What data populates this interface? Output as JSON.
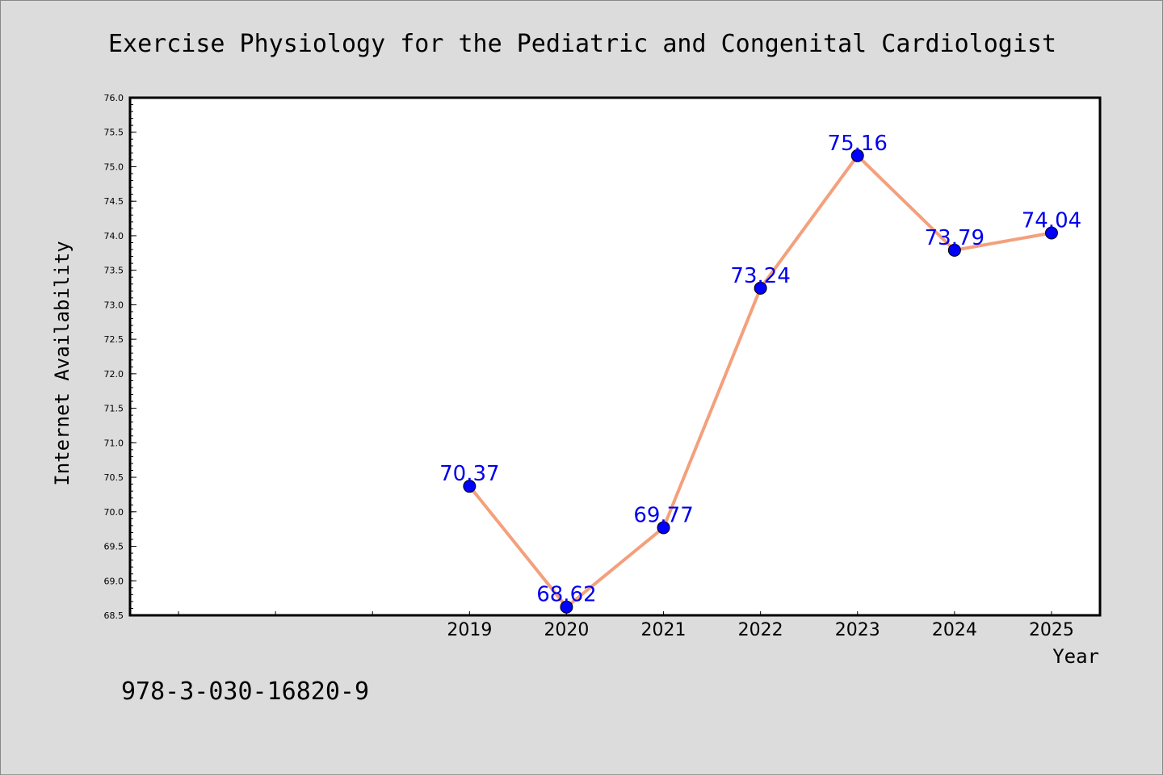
{
  "chart_data": {
    "type": "line",
    "title": "Exercise Physiology for the Pediatric and Congenital Cardiologist",
    "xlabel": "Year",
    "ylabel": "Internet Availability",
    "x": [
      2019,
      2020,
      2021,
      2022,
      2023,
      2024,
      2025
    ],
    "values": [
      70.37,
      68.62,
      69.77,
      73.24,
      75.16,
      73.79,
      74.04
    ],
    "data_labels": [
      "70.37",
      "68.62",
      "69.77",
      "73.24",
      "75.16",
      "73.79",
      "74.04"
    ],
    "x_tick_labels": [
      "2019",
      "2020",
      "2021",
      "2022",
      "2023",
      "2024",
      "2025"
    ],
    "y_tick_labels": [
      "68.5",
      "69.0",
      "69.5",
      "70.0",
      "70.5",
      "71.0",
      "71.5",
      "72.0",
      "72.5",
      "73.0",
      "73.5",
      "74.0",
      "74.5",
      "75.0",
      "75.5",
      "76.0"
    ],
    "xlim": [
      2015.5,
      2025.5
    ],
    "ylim": [
      68.5,
      76.0
    ],
    "grid": false,
    "legend": "none",
    "line_color": "#f4a07c",
    "marker_color": "#0000ff",
    "label_color": "#0000ee"
  },
  "footer": {
    "isbn": "978-3-030-16820-9"
  }
}
